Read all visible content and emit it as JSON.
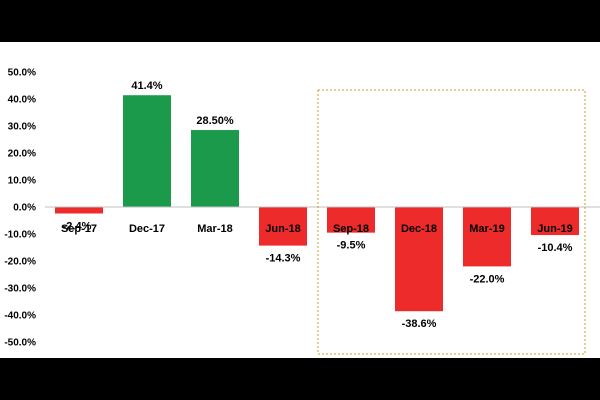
{
  "chart_data": {
    "type": "bar",
    "title": "",
    "xlabel": "",
    "ylabel": "",
    "ylim": [
      -50,
      50
    ],
    "y_tick_step": 10,
    "y_tick_labels": [
      "50.0%",
      "40.0%",
      "30.0%",
      "20.0%",
      "10.0%",
      "0.0%",
      "-10.0%",
      "-20.0%",
      "-30.0%",
      "-40.0%",
      "-50.0%"
    ],
    "categories": [
      "Sep-17",
      "Dec-17",
      "Mar-18",
      "Jun-18",
      "Sep-18",
      "Dec-18",
      "Mar-19",
      "Jun-19"
    ],
    "values": [
      -2.4,
      41.4,
      28.5,
      -14.3,
      -9.5,
      -38.6,
      -22.0,
      -10.4
    ],
    "data_labels": [
      "-2.4%",
      "41.4%",
      "28.50%",
      "-14.3%",
      "-9.5%",
      "-38.6%",
      "-22.0%",
      "-10.4%"
    ],
    "grid": false,
    "legend": "none",
    "highlight_box": {
      "from_category": "Sep-18",
      "to_category": "Jun-19",
      "style": "dashed"
    },
    "colors": {
      "positive": "#1a9a4a",
      "negative": "#ee2b2b",
      "axis": "#bfbfbf",
      "highlight": "#c9a227"
    }
  }
}
